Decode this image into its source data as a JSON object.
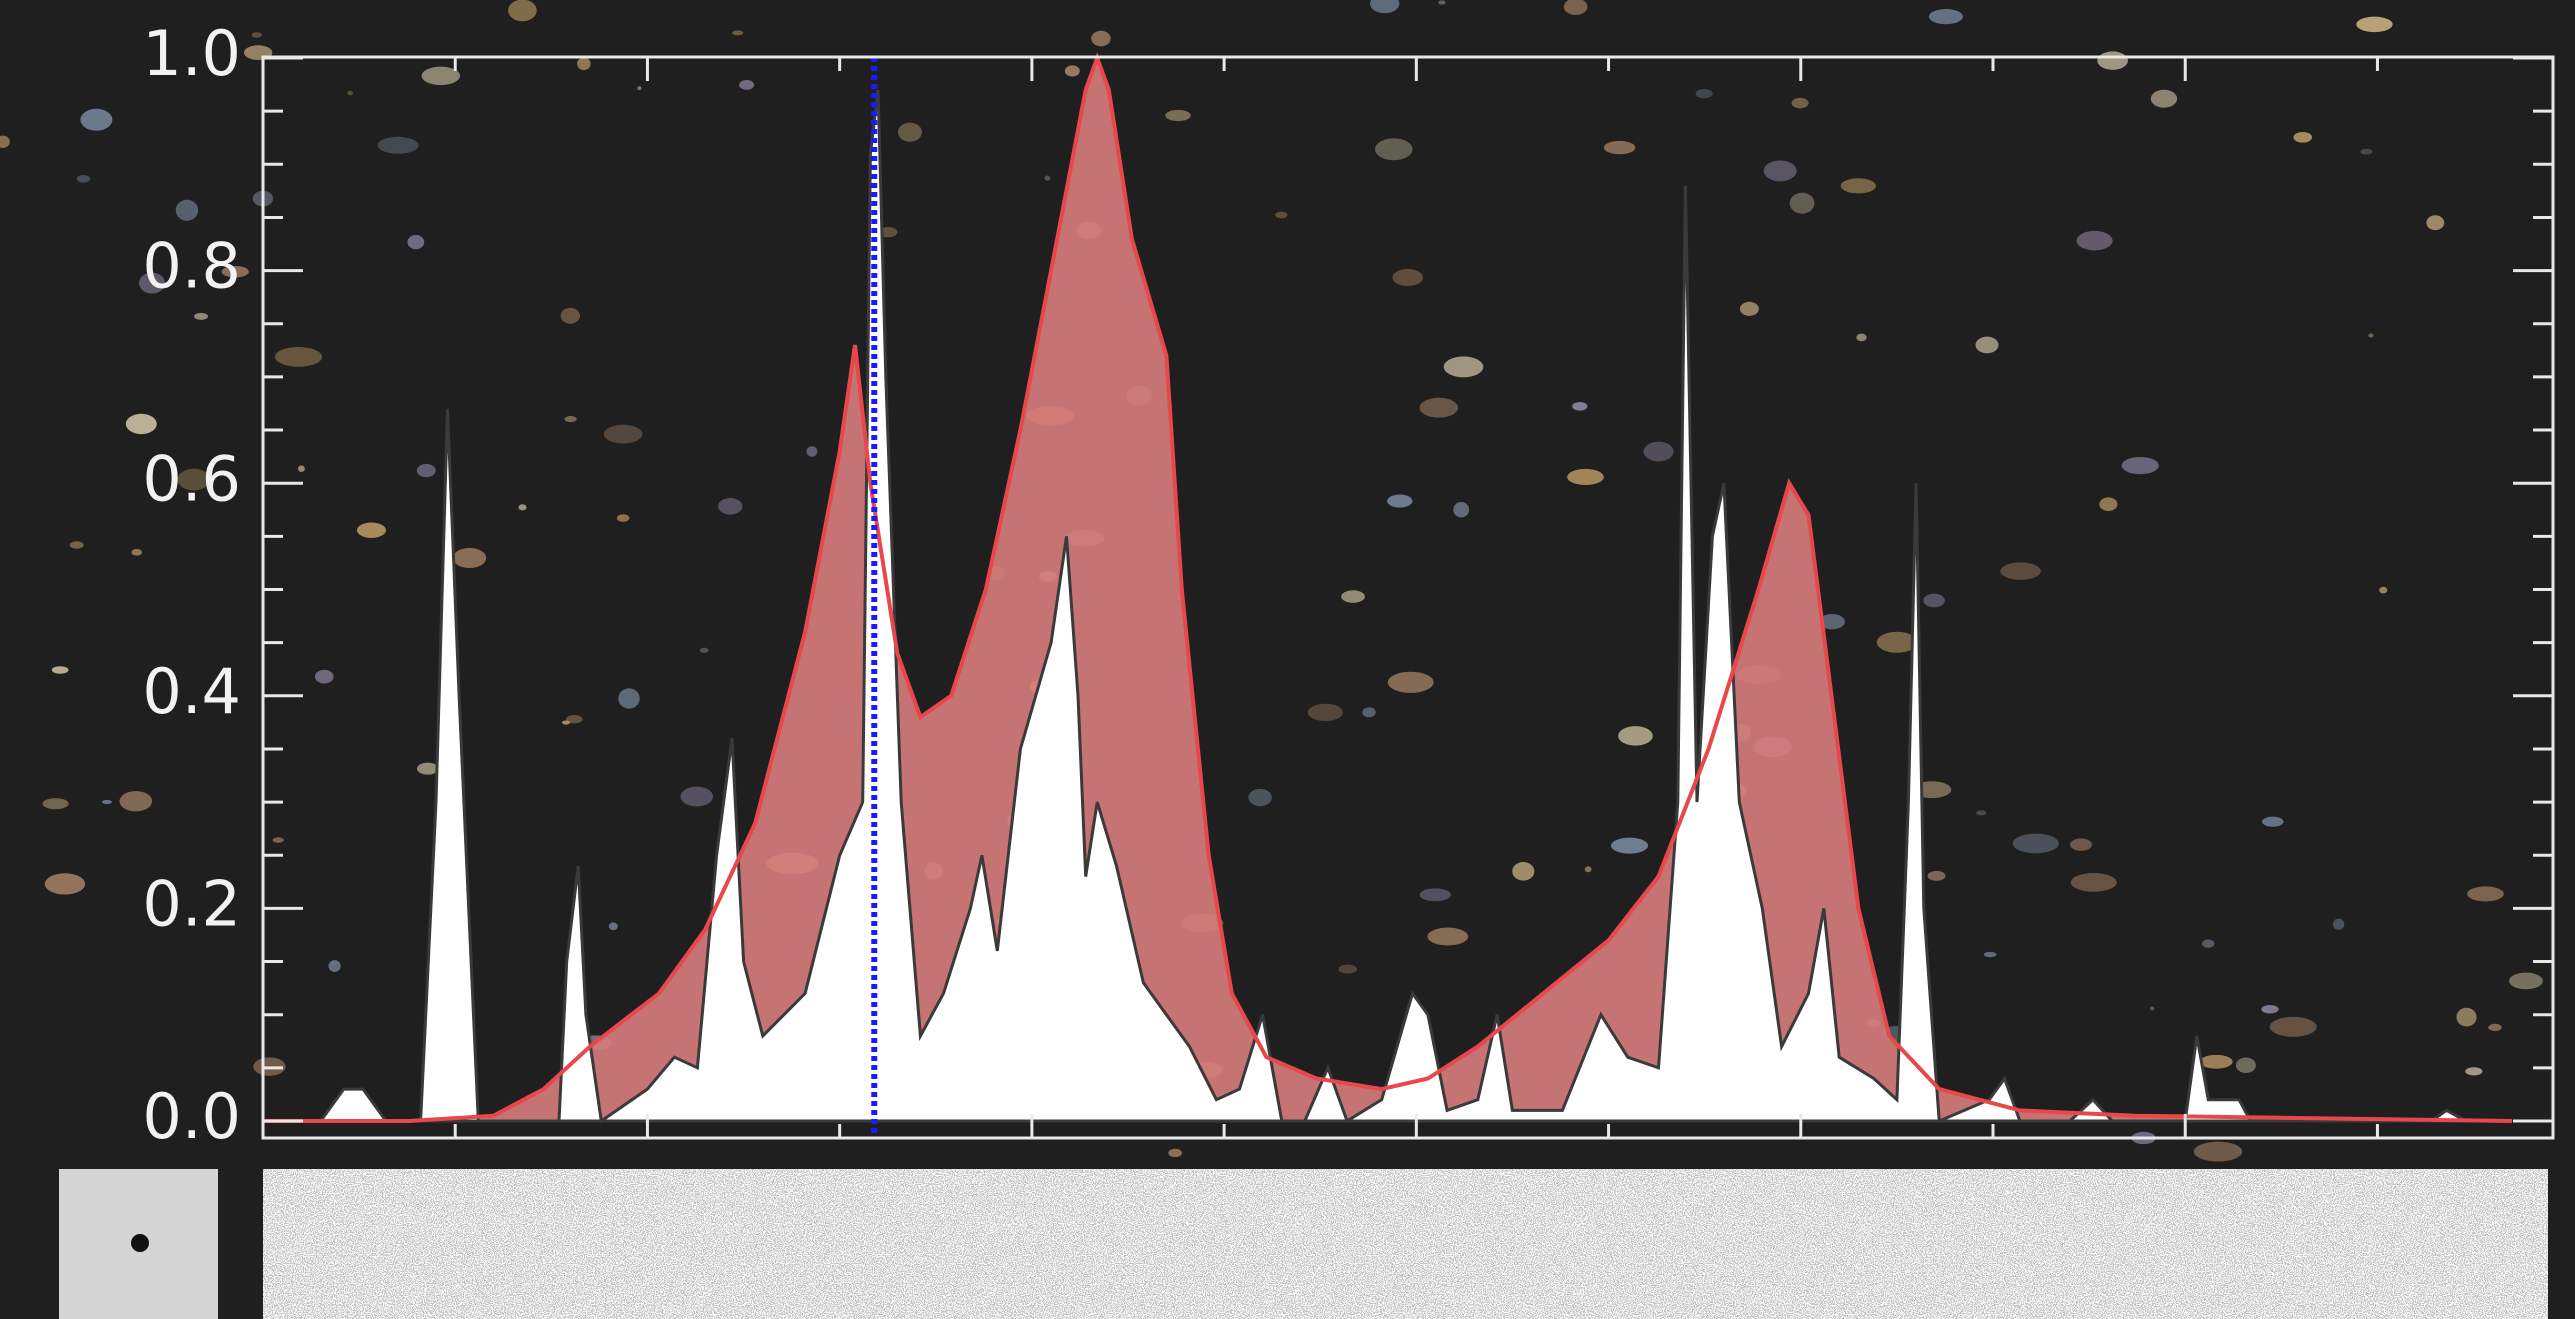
{
  "chart_data": {
    "type": "spectrum",
    "xlim": [
      0,
      58.5
    ],
    "xticks": [
      0,
      5,
      10,
      15,
      20,
      25,
      30,
      35,
      40,
      45,
      50,
      55
    ],
    "ylim": [
      0,
      1
    ],
    "yticks": [
      {
        "value": 0,
        "label": "0.0"
      },
      {
        "value": 0.2,
        "label": "0.2"
      },
      {
        "value": 0.4,
        "label": "0.4"
      },
      {
        "value": 0.6,
        "label": "0.6"
      },
      {
        "value": 0.8,
        "label": "0.8"
      },
      {
        "value": 1,
        "label": "1.0"
      }
    ],
    "marker_x": 15.9,
    "marker_color": "#1a1aff",
    "series": [
      {
        "color": "#ffffff",
        "x": [
          0,
          1.5,
          2.1,
          2.6,
          3.2,
          4.1,
          4.5,
          4.8,
          5.1,
          5.6,
          7.7,
          7.9,
          8.2,
          8.4,
          8.8,
          10.0,
          10.7,
          11.3,
          11.8,
          12.2,
          12.5,
          13.0,
          14.1,
          15.0,
          15.6,
          15.8,
          16.0,
          16.2,
          16.6,
          17.1,
          17.7,
          18.4,
          18.7,
          19.1,
          19.7,
          20.5,
          20.9,
          21.2,
          21.4,
          21.7,
          22.2,
          22.9,
          23.5,
          24.1,
          24.8,
          25.4,
          26.0,
          26.5,
          27.1,
          27.7,
          28.2,
          29.1,
          29.9,
          30.3,
          30.8,
          31.6,
          32.1,
          32.5,
          33.8,
          34.8,
          35.5,
          36.3,
          36.8,
          37.0,
          37.3,
          37.7,
          38.0,
          38.4,
          39.0,
          39.5,
          40.2,
          40.6,
          41.0,
          41.9,
          42.5,
          42.8,
          43.0,
          43.2,
          43.6,
          44.9,
          45.3,
          45.7,
          47.0,
          47.6,
          48.1,
          50.0,
          50.3,
          50.6,
          51.4,
          51.7,
          56.4,
          56.8,
          57.3,
          58.5
        ],
        "values": [
          0,
          0,
          0.03,
          0.03,
          0,
          0,
          0.3,
          0.67,
          0.4,
          0,
          0,
          0.15,
          0.24,
          0.1,
          0,
          0.03,
          0.06,
          0.05,
          0.25,
          0.36,
          0.15,
          0.08,
          0.12,
          0.25,
          0.3,
          0.91,
          0.97,
          0.7,
          0.3,
          0.08,
          0.12,
          0.2,
          0.25,
          0.16,
          0.35,
          0.45,
          0.55,
          0.4,
          0.23,
          0.3,
          0.24,
          0.13,
          0.1,
          0.07,
          0.02,
          0.03,
          0.1,
          0,
          0,
          0.05,
          0,
          0.02,
          0.12,
          0.1,
          0.01,
          0.02,
          0.1,
          0.01,
          0.01,
          0.1,
          0.06,
          0.05,
          0.3,
          0.88,
          0.3,
          0.55,
          0.6,
          0.3,
          0.2,
          0.07,
          0.12,
          0.2,
          0.06,
          0.04,
          0.02,
          0.3,
          0.6,
          0.2,
          0,
          0.02,
          0.04,
          0,
          0,
          0.02,
          0,
          0,
          0.08,
          0.02,
          0.02,
          0,
          0,
          0.01,
          0,
          0
        ]
      },
      {
        "color": "#e8474b",
        "x": [
          0,
          3.8,
          6.0,
          7.3,
          8.5,
          10.3,
          11.5,
          12.8,
          14.1,
          15.0,
          15.4,
          15.8,
          16.5,
          17.1,
          17.9,
          18.8,
          19.7,
          20.5,
          21.4,
          21.7,
          22.0,
          22.6,
          23.5,
          23.9,
          24.6,
          25.2,
          26.1,
          27.4,
          29.1,
          30.3,
          31.6,
          33.3,
          35.0,
          36.3,
          37.6,
          38.9,
          39.7,
          40.2,
          40.8,
          41.5,
          42.3,
          43.6,
          45.7,
          48.7,
          58.5
        ],
        "values": [
          0,
          0,
          0.005,
          0.03,
          0.07,
          0.12,
          0.18,
          0.28,
          0.46,
          0.63,
          0.73,
          0.6,
          0.44,
          0.38,
          0.4,
          0.5,
          0.65,
          0.8,
          0.97,
          1.0,
          0.97,
          0.83,
          0.72,
          0.5,
          0.25,
          0.12,
          0.06,
          0.04,
          0.03,
          0.04,
          0.07,
          0.12,
          0.17,
          0.23,
          0.35,
          0.5,
          0.6,
          0.57,
          0.4,
          0.2,
          0.08,
          0.03,
          0.01,
          0.005,
          0
        ]
      }
    ]
  }
}
